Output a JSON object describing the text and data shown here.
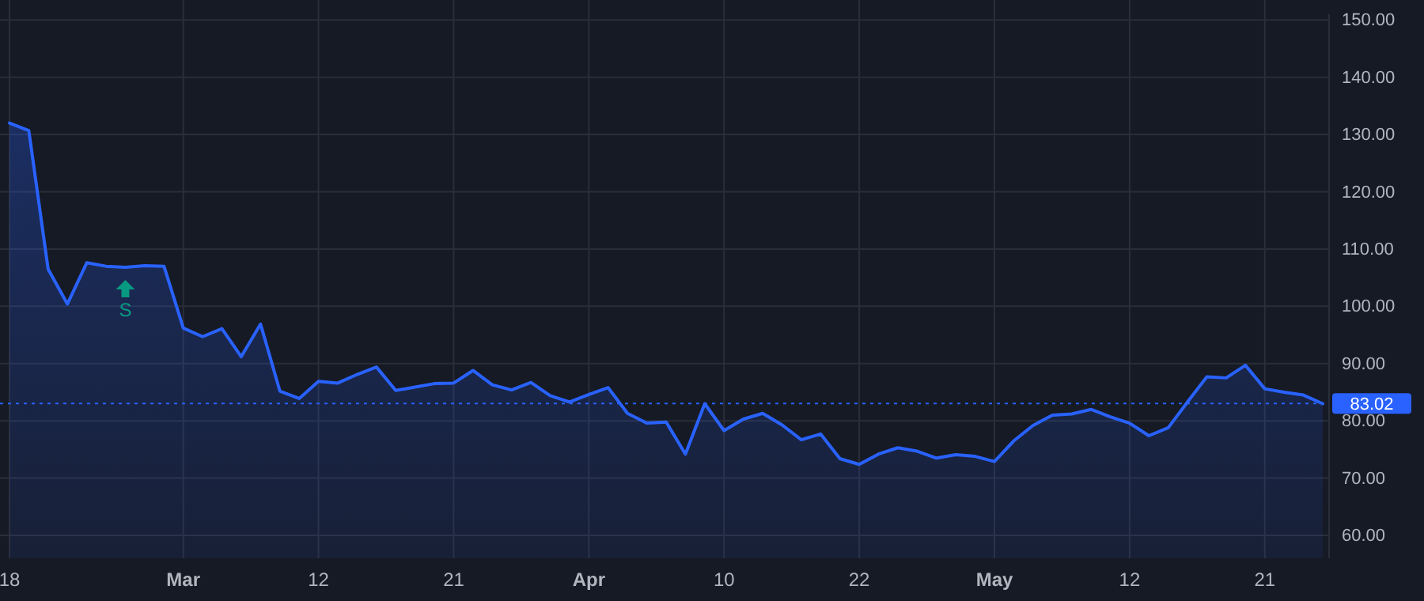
{
  "chart_data": {
    "type": "area",
    "categories": [
      "18",
      null,
      null,
      null,
      null,
      null,
      null,
      null,
      null,
      "Mar",
      null,
      null,
      null,
      null,
      null,
      null,
      "12",
      null,
      null,
      null,
      null,
      null,
      null,
      "21",
      null,
      null,
      null,
      null,
      null,
      null,
      "Apr",
      null,
      null,
      null,
      null,
      null,
      null,
      "10",
      null,
      null,
      null,
      null,
      null,
      null,
      "22",
      null,
      null,
      null,
      null,
      null,
      null,
      "May",
      null,
      null,
      null,
      null,
      null,
      null,
      "12",
      null,
      null,
      null,
      null,
      null,
      null,
      "21",
      null,
      null,
      null
    ],
    "series": [
      {
        "color": "#2962ff",
        "values": [
          132.0,
          130.7,
          106.5,
          100.4,
          107.6,
          107.0,
          106.8,
          107.1,
          107.0,
          96.2,
          94.7,
          96.1,
          91.2,
          96.9,
          85.2,
          83.9,
          86.9,
          86.6,
          88.1,
          89.4,
          85.3,
          85.9,
          86.5,
          86.6,
          88.8,
          86.3,
          85.4,
          86.7,
          84.4,
          83.3,
          84.6,
          85.8,
          81.3,
          79.6,
          79.8,
          74.2,
          83.0,
          78.3,
          80.3,
          81.3,
          79.3,
          76.7,
          77.7,
          73.4,
          72.4,
          74.2,
          75.3,
          74.7,
          73.5,
          74.1,
          73.8,
          72.9,
          76.5,
          79.2,
          81.0,
          81.2,
          82.0,
          80.7,
          79.6,
          77.4,
          78.8,
          83.3,
          87.7,
          87.5,
          89.7,
          85.6,
          85.0,
          84.5,
          83.0
        ]
      }
    ],
    "ylim": [
      56,
      151
    ],
    "yticks": [
      {
        "value": 60,
        "label": "60.00"
      },
      {
        "value": 70,
        "label": "70.00"
      },
      {
        "value": 80,
        "label": "80.00"
      },
      {
        "value": 90,
        "label": "90.00"
      },
      {
        "value": 100,
        "label": "100.00"
      },
      {
        "value": 110,
        "label": "110.00"
      },
      {
        "value": 120,
        "label": "120.00"
      },
      {
        "value": 130,
        "label": "130.00"
      },
      {
        "value": 140,
        "label": "140.00"
      },
      {
        "value": 150,
        "label": "150.00"
      }
    ],
    "grid": true,
    "ref_lines": [
      {
        "axis": "y",
        "value": 83.02,
        "label": "83.02",
        "color": "#2962ff",
        "line_style": "dotted"
      }
    ],
    "annotations": [
      "S"
    ]
  }
}
